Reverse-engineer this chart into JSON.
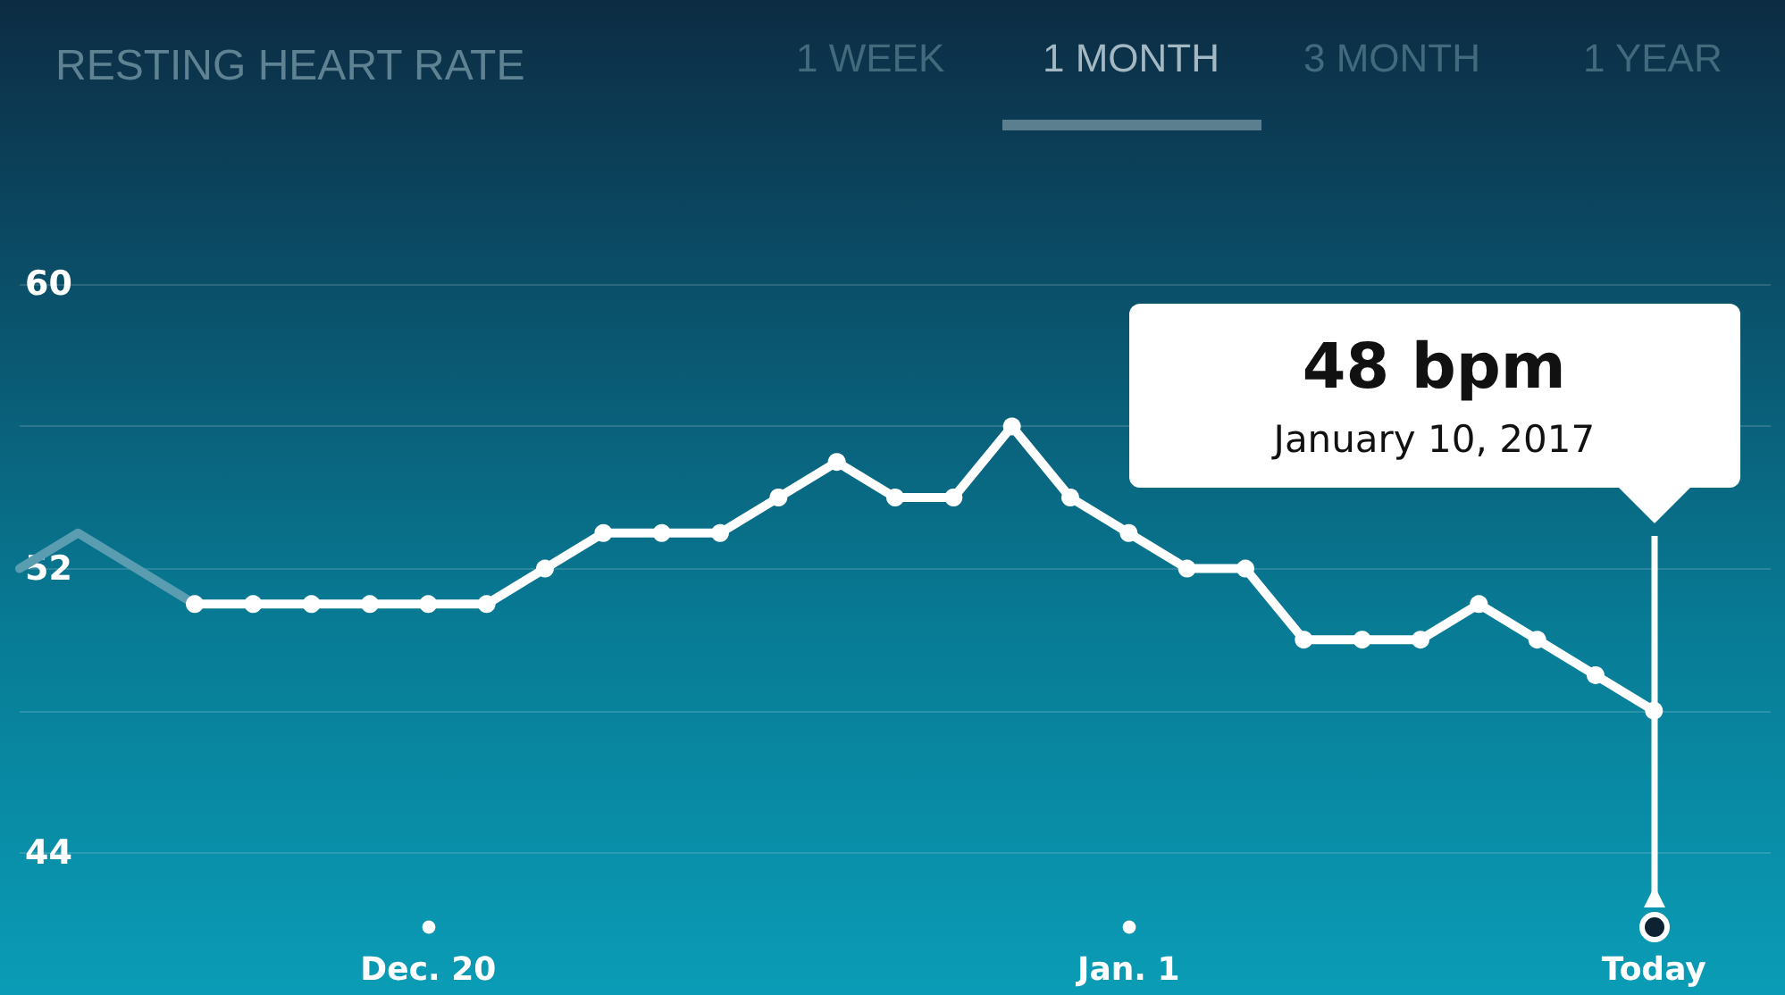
{
  "chart_data": {
    "type": "line",
    "title": "RESTING HEART RATE",
    "annotations": [
      "1 WEEK",
      "1 MONTH",
      "3 MONTH",
      "1 YEAR",
      "48 bpm",
      "January 10, 2017"
    ],
    "series": [
      {
        "color": "#5a9db0",
        "marker": "none",
        "x": [
          "2016-12-13",
          "2016-12-14",
          "2016-12-15",
          "2016-12-16"
        ],
        "values": [
          52,
          53,
          52,
          51
        ]
      },
      {
        "color": "#ffffff",
        "x": [
          "2016-12-16",
          "2016-12-17",
          "2016-12-18",
          "2016-12-19",
          "2016-12-20",
          "2016-12-21",
          "2016-12-22",
          "2016-12-23",
          "2016-12-24",
          "2016-12-25",
          "2016-12-26",
          "2016-12-27",
          "2016-12-28",
          "2016-12-29",
          "2016-12-30",
          "2016-12-31",
          "2017-01-01",
          "2017-01-02",
          "2017-01-03",
          "2017-01-04",
          "2017-01-05",
          "2017-01-06",
          "2017-01-07",
          "2017-01-08",
          "2017-01-09",
          "2017-01-10"
        ],
        "values": [
          51,
          51,
          51,
          51,
          51,
          51,
          52,
          53,
          53,
          53,
          54,
          55,
          54,
          54,
          56,
          54,
          53,
          52,
          52,
          50,
          50,
          50,
          51,
          50,
          49,
          48
        ]
      }
    ],
    "ref_lines": [
      {
        "axis": "x",
        "value": "2017-01-10",
        "color": "#ffffff"
      }
    ],
    "xlim": [
      "2016-12-13",
      "2017-01-12"
    ],
    "xticks": [
      {
        "value": "2016-12-20",
        "label": "Dec. 20"
      },
      {
        "value": "2017-01-01",
        "label": "Jan. 1"
      },
      {
        "value": "2017-01-10",
        "label": "Today"
      }
    ],
    "ylim": [
      40,
      68
    ],
    "yticks": [
      44,
      {
        "value": 48,
        "label": null
      },
      52,
      {
        "value": 56,
        "label": null
      },
      60
    ],
    "grid": "y",
    "marker": "circle"
  }
}
